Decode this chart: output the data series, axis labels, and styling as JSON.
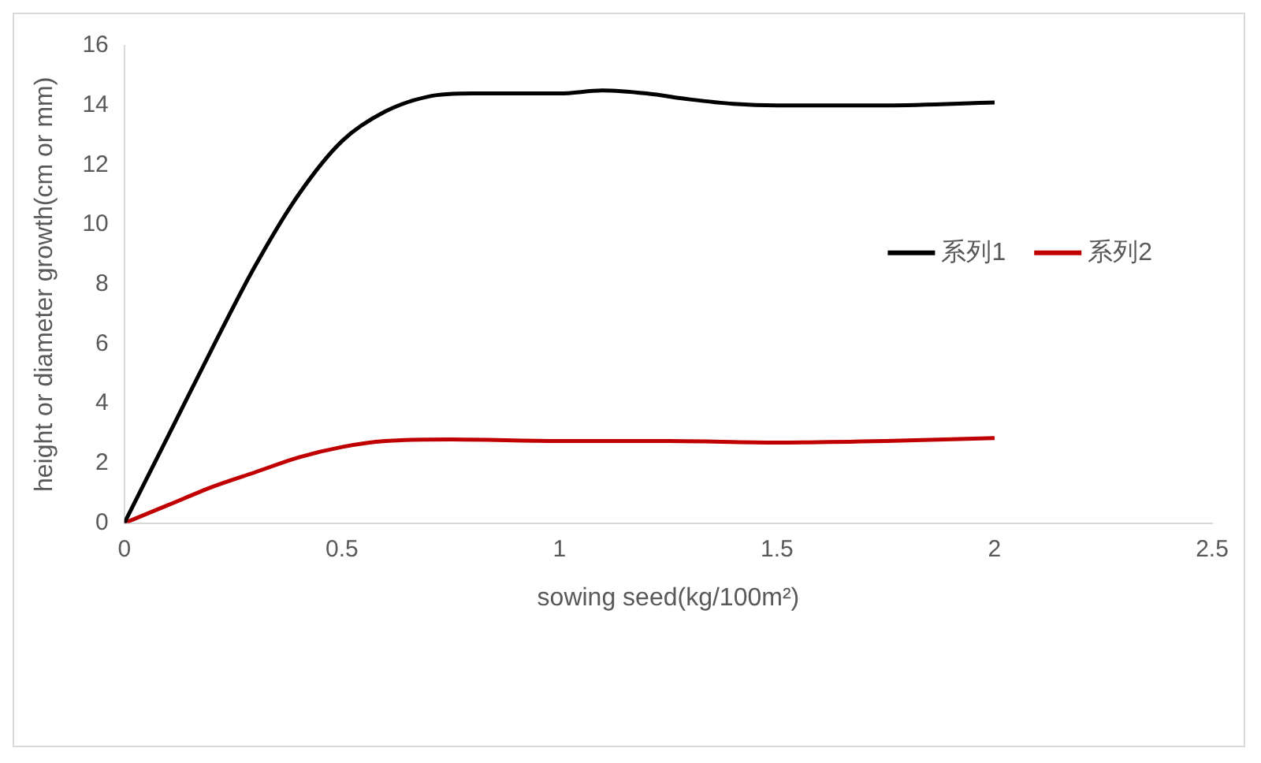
{
  "chart_data": {
    "type": "line",
    "xlabel": "sowing seed(kg/100m²)",
    "ylabel": "height or diameter growth(cm or mm)",
    "x": [
      0,
      0.1,
      0.2,
      0.3,
      0.4,
      0.5,
      0.6,
      0.7,
      0.8,
      0.9,
      1,
      1.1,
      1.2,
      1.3,
      1.4,
      1.5,
      1.75,
      2
    ],
    "series": [
      {
        "name": "系列1",
        "color": "#000000",
        "values": [
          0,
          2.9,
          5.8,
          8.6,
          11,
          12.8,
          13.8,
          14.3,
          14.4,
          14.4,
          14.4,
          14.5,
          14.4,
          14.2,
          14.05,
          14,
          14,
          14.1
        ]
      },
      {
        "name": "系列2",
        "color": "#c00000",
        "x": [
          0,
          0.1,
          0.2,
          0.3,
          0.4,
          0.5,
          0.6,
          0.75,
          1,
          1.25,
          1.5,
          1.75,
          2
        ],
        "values": [
          0,
          0.6,
          1.2,
          1.7,
          2.2,
          2.55,
          2.75,
          2.8,
          2.75,
          2.75,
          2.7,
          2.75,
          2.85
        ]
      }
    ],
    "xlim": [
      0,
      2.5
    ],
    "xticks": [
      0,
      0.5,
      1,
      1.5,
      2,
      2.5
    ],
    "ylim": [
      0,
      16
    ],
    "yticks": [
      0,
      2,
      4,
      6,
      8,
      10,
      12,
      14,
      16
    ],
    "grid": false,
    "legend": "right",
    "marker": "none",
    "line_style": "solid"
  }
}
